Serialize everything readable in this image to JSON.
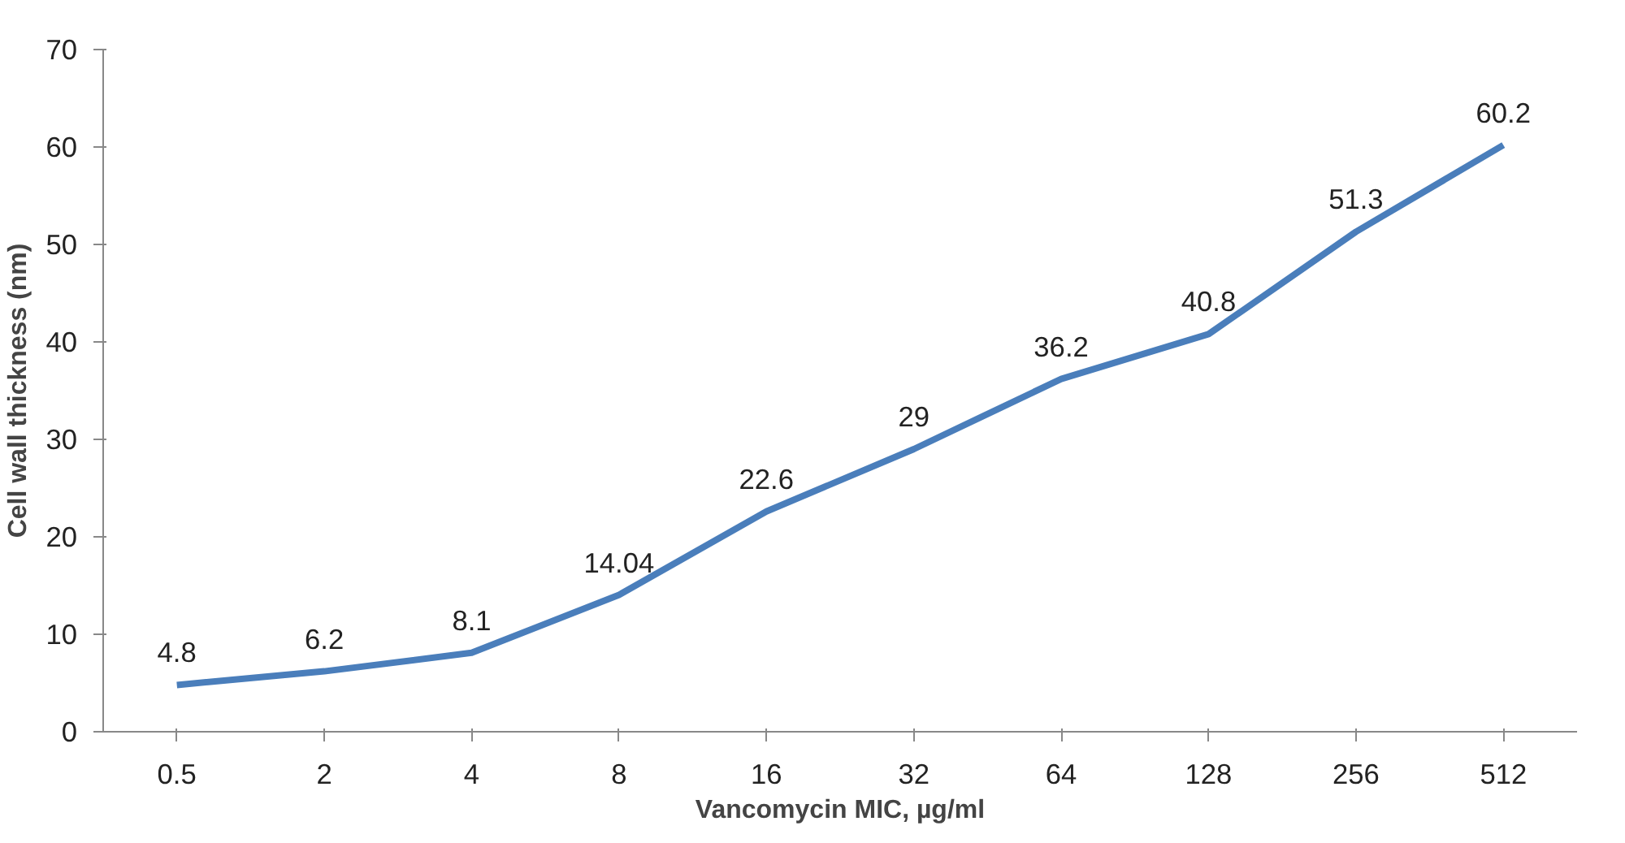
{
  "chart_data": {
    "type": "line",
    "xlabel": "Vancomycin MIC, µg/ml",
    "ylabel": "Cell wall thickness (nm)",
    "categories": [
      "0.5",
      "2",
      "4",
      "8",
      "16",
      "32",
      "64",
      "128",
      "256",
      "512"
    ],
    "series": [
      {
        "color": "#4a7ebb",
        "values": [
          4.8,
          6.2,
          8.1,
          14.04,
          22.6,
          29,
          36.2,
          40.8,
          51.3,
          60.2
        ]
      }
    ],
    "ylim": [
      0,
      70
    ],
    "yticks": [
      0,
      10,
      20,
      30,
      40,
      50,
      60,
      70
    ],
    "grid": false,
    "data_labels": true,
    "marker": "none",
    "line_style": "solid"
  }
}
